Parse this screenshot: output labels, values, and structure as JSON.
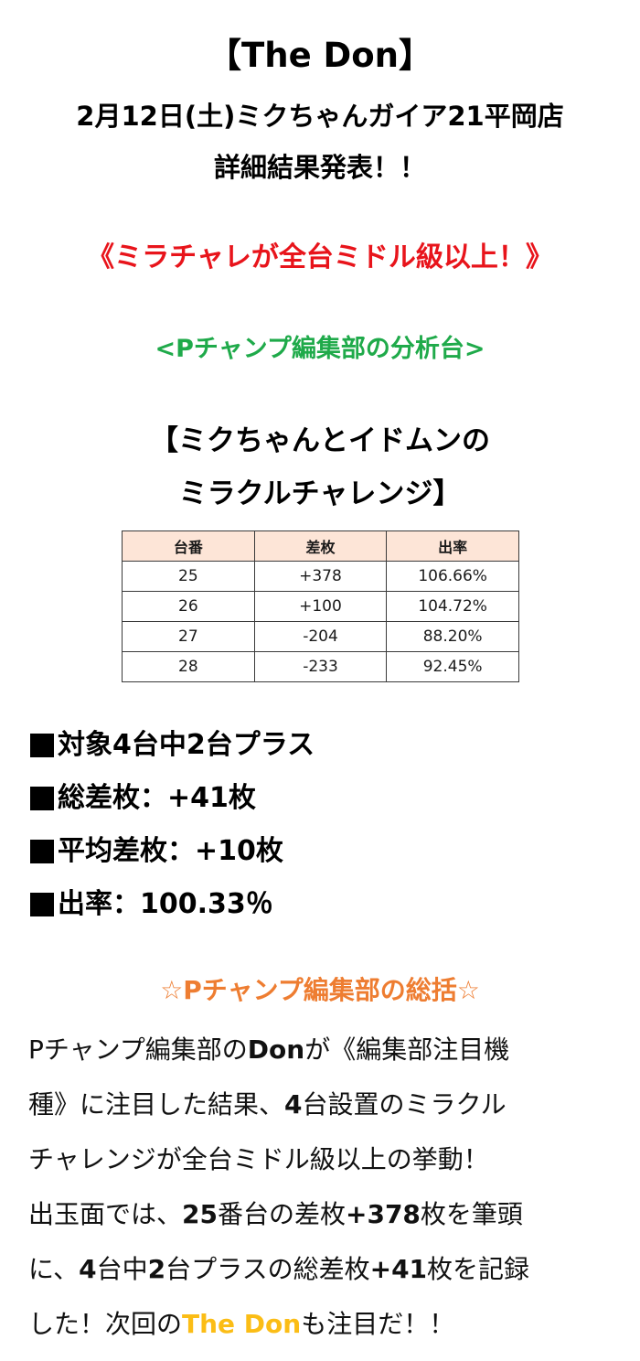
{
  "header": {
    "title": "【The Don】",
    "date_store": "2月12日(土)ミクちゃんガイア21平岡店",
    "subtitle": "詳細結果発表！！"
  },
  "headline": {
    "text": "《ミラチャレが全台ミドル級以上！》",
    "color": "#e8141b"
  },
  "analysis_section": {
    "label": "<Pチャンプ編集部の分析台>",
    "color": "#1faa4a"
  },
  "machine": {
    "title_line1": "【ミクちゃんとイドムンの",
    "title_line2": "ミラクルチャレンジ】"
  },
  "table": {
    "header_bg": "#fde5d7",
    "columns": [
      "台番",
      "差枚",
      "出率"
    ],
    "rows": [
      [
        "25",
        "+378",
        "106.66%"
      ],
      [
        "26",
        "+100",
        "104.72%"
      ],
      [
        "27",
        "-204",
        "88.20%"
      ],
      [
        "28",
        "-233",
        "92.45%"
      ]
    ]
  },
  "summary": {
    "items": [
      "対象4台中2台プラス",
      "総差枚：+41枚",
      "平均差枚：+10枚",
      "出率：100.33％"
    ]
  },
  "recap_section": {
    "label": "☆Pチャンプ編集部の総括☆",
    "color": "#ee7d31"
  },
  "recap": {
    "lines": [
      [
        "Pチャンプ編集部の",
        "Don",
        "が《編集部注目機"
      ],
      [
        "種》に注目した結果、",
        "4",
        "台設置のミラクル"
      ],
      [
        "チャレンジが全台ミドル級以上の挙動！"
      ],
      [
        "出玉面では、",
        "25",
        "番台の差枚",
        "+378",
        "枚を筆頭"
      ],
      [
        "に、",
        "4",
        "台中",
        "2",
        "台プラスの総差枚",
        "+41",
        "枚を記録"
      ],
      [
        "した！次回の",
        "The Don",
        "も注目だ！！"
      ]
    ],
    "highlight_color": "#fbbd16"
  }
}
